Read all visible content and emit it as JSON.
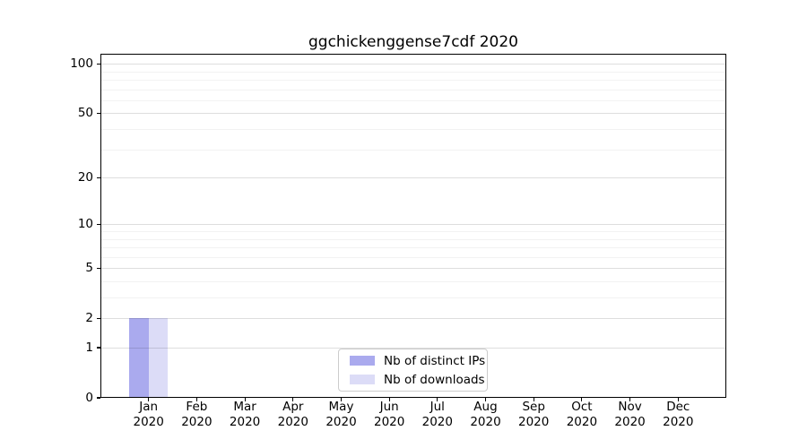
{
  "chart_data": {
    "type": "bar",
    "title": "ggchickenggense7cdf 2020",
    "categories": [
      "Jan",
      "Feb",
      "Mar",
      "Apr",
      "May",
      "Jun",
      "Jul",
      "Aug",
      "Sep",
      "Oct",
      "Nov",
      "Dec"
    ],
    "x_sub_label": "2020",
    "series": [
      {
        "name": "Nb of distinct IPs",
        "color": "#aaaaee",
        "values": [
          2,
          0,
          0,
          0,
          0,
          0,
          0,
          0,
          0,
          0,
          0,
          0
        ]
      },
      {
        "name": "Nb of downloads",
        "color": "#dcdcf7",
        "values": [
          2,
          0,
          0,
          0,
          0,
          0,
          0,
          0,
          0,
          0,
          0,
          0
        ]
      }
    ],
    "yscale": "log1p",
    "ylim": [
      0,
      115
    ],
    "xlim": [
      -1,
      12
    ],
    "y_ticks": [
      0,
      1,
      2,
      5,
      10,
      20,
      50,
      100
    ],
    "y_minor_gridlines": [
      3,
      4,
      6,
      7,
      8,
      9,
      30,
      40,
      60,
      70,
      80,
      90
    ],
    "bar_width": 0.4,
    "grid": true,
    "legend_position": "lower center",
    "colors": {
      "spine": "#000000",
      "background": "#ffffff",
      "major_grid": "rgba(0,0,0,0.13)",
      "minor_grid": "rgba(0,0,0,0.05)"
    }
  }
}
